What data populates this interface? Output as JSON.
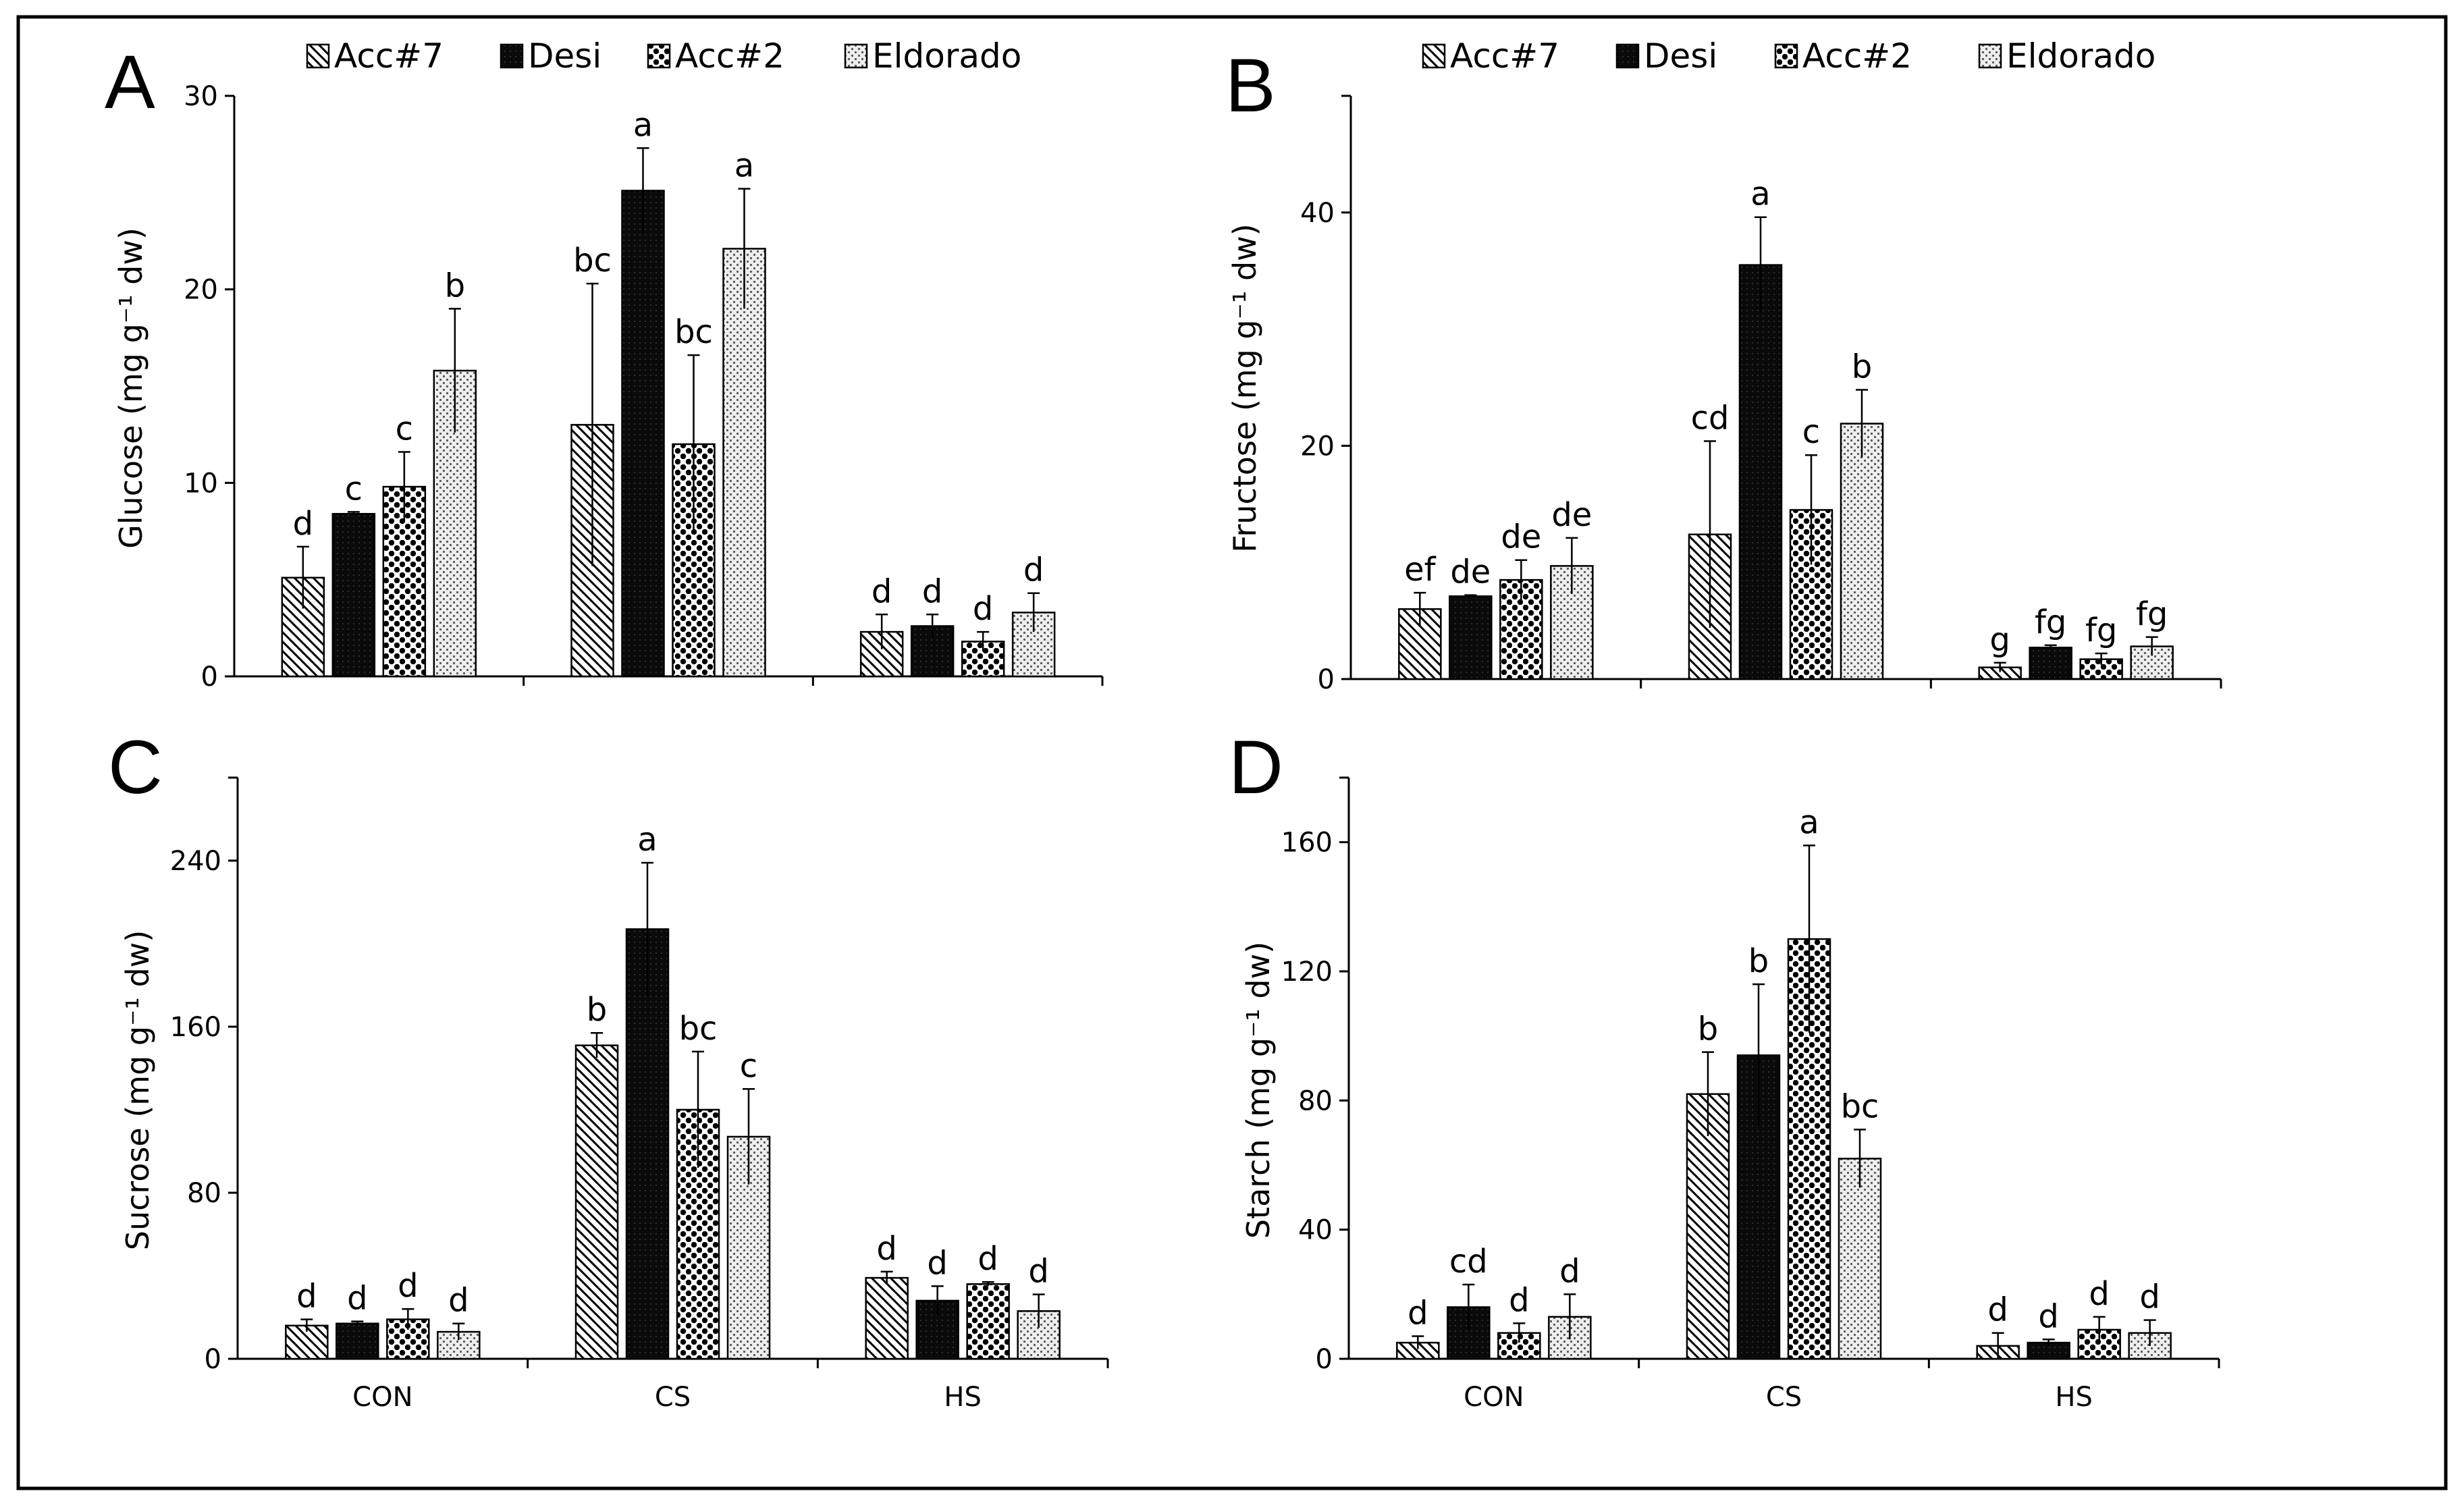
{
  "chart_data": [
    {
      "type": "bar",
      "panel": "A",
      "ylabel": "Glucose (mg g⁻¹ dw)",
      "ylim": [
        0,
        30
      ],
      "yticks": [
        0,
        10,
        20,
        30
      ],
      "categories": [
        "CON",
        "CS",
        "HS"
      ],
      "legend": [
        "Acc#7",
        "Desi",
        "Acc#2",
        "Eldorado"
      ],
      "series": [
        {
          "name": "Acc#7",
          "values": [
            5.1,
            13.0,
            2.3
          ],
          "errors": [
            1.6,
            7.3,
            0.9
          ],
          "letters": [
            "d",
            "bc",
            "d"
          ]
        },
        {
          "name": "Desi",
          "values": [
            8.4,
            25.1,
            2.6
          ],
          "errors": [
            0.1,
            2.2,
            0.6
          ],
          "letters": [
            "c",
            "a",
            "d"
          ]
        },
        {
          "name": "Acc#2",
          "values": [
            9.8,
            12.0,
            1.8
          ],
          "errors": [
            1.8,
            4.6,
            0.5
          ],
          "letters": [
            "c",
            "bc",
            "d"
          ]
        },
        {
          "name": "Eldorado",
          "values": [
            15.8,
            22.1,
            3.3
          ],
          "errors": [
            3.2,
            3.1,
            1.0
          ],
          "letters": [
            "b",
            "a",
            "d"
          ]
        }
      ]
    },
    {
      "type": "bar",
      "panel": "B",
      "ylabel": "Fructose (mg g⁻¹ dw)",
      "ylim": [
        0,
        50
      ],
      "yticks": [
        0,
        20,
        40
      ],
      "categories": [
        "CON",
        "CS",
        "HS"
      ],
      "legend": [
        "Acc#7",
        "Desi",
        "Acc#2",
        "Eldorado"
      ],
      "series": [
        {
          "name": "Acc#7",
          "values": [
            6.0,
            12.4,
            1.0
          ],
          "errors": [
            1.4,
            8.0,
            0.4
          ],
          "letters": [
            "ef",
            "cd",
            "g"
          ]
        },
        {
          "name": "Desi",
          "values": [
            7.1,
            35.5,
            2.7
          ],
          "errors": [
            0.1,
            4.1,
            0.2
          ],
          "letters": [
            "de",
            "a",
            "fg"
          ]
        },
        {
          "name": "Acc#2",
          "values": [
            8.5,
            14.5,
            1.7
          ],
          "errors": [
            1.7,
            4.7,
            0.5
          ],
          "letters": [
            "de",
            "c",
            "fg"
          ]
        },
        {
          "name": "Eldorado",
          "values": [
            9.7,
            21.9,
            2.8
          ],
          "errors": [
            2.4,
            2.9,
            0.8
          ],
          "letters": [
            "de",
            "b",
            "fg"
          ]
        }
      ]
    },
    {
      "type": "bar",
      "panel": "C",
      "ylabel": "Sucrose (mg g⁻¹ dw)",
      "ylim": [
        0,
        280
      ],
      "yticks": [
        0,
        80,
        160,
        240
      ],
      "categories": [
        "CON",
        "CS",
        "HS"
      ],
      "series": [
        {
          "name": "Acc#7",
          "values": [
            16,
            151,
            39
          ],
          "errors": [
            3,
            6,
            3
          ],
          "letters": [
            "d",
            "b",
            "d"
          ]
        },
        {
          "name": "Desi",
          "values": [
            17,
            207,
            28
          ],
          "errors": [
            1,
            32,
            7
          ],
          "letters": [
            "d",
            "a",
            "d"
          ]
        },
        {
          "name": "Acc#2",
          "values": [
            19,
            120,
            36
          ],
          "errors": [
            5,
            28,
            1
          ],
          "letters": [
            "d",
            "bc",
            "d"
          ]
        },
        {
          "name": "Eldorado",
          "values": [
            13,
            107,
            23
          ],
          "errors": [
            4,
            23,
            8
          ],
          "letters": [
            "d",
            "c",
            "d"
          ]
        }
      ]
    },
    {
      "type": "bar",
      "panel": "D",
      "ylabel": "Starch (mg g⁻¹ dw)",
      "ylim": [
        0,
        180
      ],
      "yticks": [
        0,
        40,
        80,
        120,
        160
      ],
      "categories": [
        "CON",
        "CS",
        "HS"
      ],
      "series": [
        {
          "name": "Acc#7",
          "values": [
            5,
            82,
            4
          ],
          "errors": [
            2,
            13,
            4
          ],
          "letters": [
            "d",
            "b",
            "d"
          ]
        },
        {
          "name": "Desi",
          "values": [
            16,
            94,
            5
          ],
          "errors": [
            7,
            22,
            1
          ],
          "letters": [
            "cd",
            "b",
            "d"
          ]
        },
        {
          "name": "Acc#2",
          "values": [
            8,
            130,
            9
          ],
          "errors": [
            3,
            29,
            4
          ],
          "letters": [
            "d",
            "a",
            "d"
          ]
        },
        {
          "name": "Eldorado",
          "values": [
            13,
            62,
            8
          ],
          "errors": [
            7,
            9,
            4
          ],
          "letters": [
            "d",
            "bc",
            "d"
          ]
        }
      ]
    }
  ]
}
